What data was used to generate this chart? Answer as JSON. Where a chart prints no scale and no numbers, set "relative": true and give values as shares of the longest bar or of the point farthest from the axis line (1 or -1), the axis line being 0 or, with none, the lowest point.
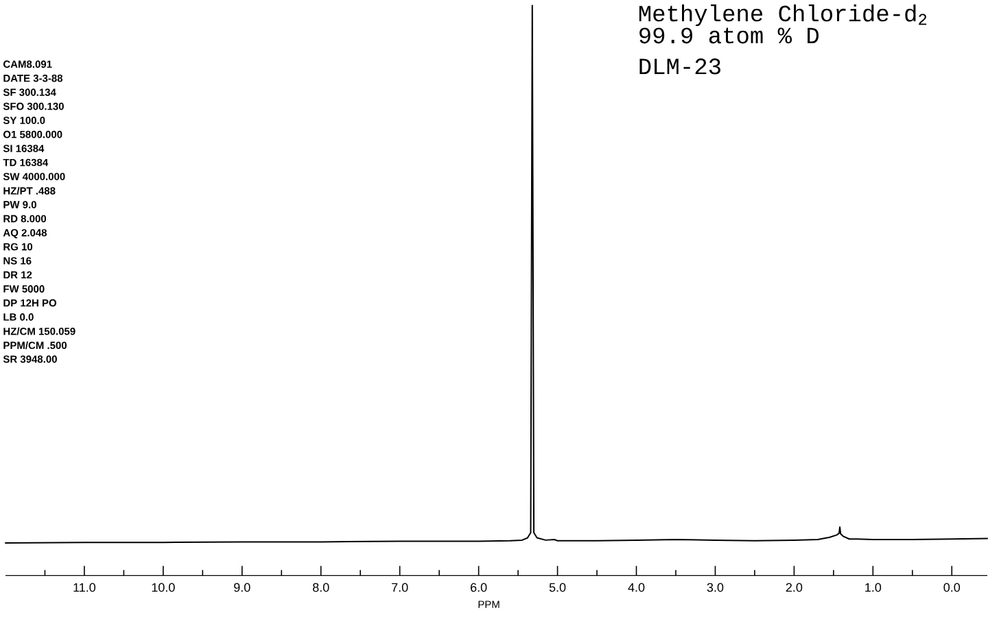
{
  "chart_data": {
    "type": "line",
    "relative": true,
    "title": "Methylene Chloride-d$_{2}$",
    "xlabel": "PPM",
    "annotations": [
      "99.9 atom % D",
      "DLM-23",
      "CAM8.091",
      "DATE 3-3-88",
      "SF 300.134",
      "SFO 300.130",
      "SY 100.0",
      "O1 5800.000",
      "SI 16384",
      "TD 16384",
      "SW 4000.000",
      "HZ/PT .488",
      "PW 9.0",
      "RD 8.000",
      "AQ 2.048",
      "RG 10",
      "NS 16",
      "DR 12",
      "FW 5000",
      "DP 12H PO",
      "LB 0.0",
      "HZ/CM 150.059",
      "PPM/CM .500",
      "SR 3948.00"
    ],
    "x": [
      12.0,
      11.0,
      10.0,
      9.0,
      8.0,
      7.0,
      6.0,
      5.6,
      5.45,
      5.38,
      5.34,
      5.32,
      5.3,
      5.26,
      5.15,
      5.04,
      5.0,
      4.5,
      4.0,
      3.5,
      3.0,
      2.5,
      2.0,
      1.7,
      1.55,
      1.46,
      1.43,
      1.42,
      1.41,
      1.38,
      1.3,
      1.2,
      1.0,
      0.5,
      0.0,
      -0.45
    ],
    "values": [
      0.057,
      0.058,
      0.058,
      0.059,
      0.059,
      0.06,
      0.06,
      0.061,
      0.062,
      0.066,
      0.075,
      1.0,
      0.075,
      0.066,
      0.062,
      0.063,
      0.061,
      0.061,
      0.062,
      0.063,
      0.062,
      0.061,
      0.062,
      0.063,
      0.067,
      0.071,
      0.074,
      0.085,
      0.073,
      0.069,
      0.064,
      0.064,
      0.063,
      0.063,
      0.064,
      0.065
    ],
    "color": "#000000",
    "xlim": [
      12.0,
      -0.45
    ],
    "xticks": [
      {
        "value": 11,
        "label": "11.0"
      },
      {
        "value": 10,
        "label": "10.0"
      },
      {
        "value": 9,
        "label": "9.0"
      },
      {
        "value": 8,
        "label": "8.0"
      },
      {
        "value": 7,
        "label": "7.0"
      },
      {
        "value": 6,
        "label": "6.0"
      },
      {
        "value": 5,
        "label": "5.0"
      },
      {
        "value": 4,
        "label": "4.0"
      },
      {
        "value": 3,
        "label": "3.0"
      },
      {
        "value": 2,
        "label": "2.0"
      },
      {
        "value": 1,
        "label": "1.0"
      },
      {
        "value": 0,
        "label": "0.0"
      },
      {
        "value": 11.5,
        "label": null
      },
      {
        "value": 10.5,
        "label": null
      },
      {
        "value": 9.5,
        "label": null
      },
      {
        "value": 8.5,
        "label": null
      },
      {
        "value": 7.5,
        "label": null
      },
      {
        "value": 6.5,
        "label": null
      },
      {
        "value": 5.5,
        "label": null
      },
      {
        "value": 4.5,
        "label": null
      },
      {
        "value": 3.5,
        "label": null
      },
      {
        "value": 2.5,
        "label": null
      },
      {
        "value": 1.5,
        "label": null
      },
      {
        "value": 0.5,
        "label": null
      }
    ]
  }
}
